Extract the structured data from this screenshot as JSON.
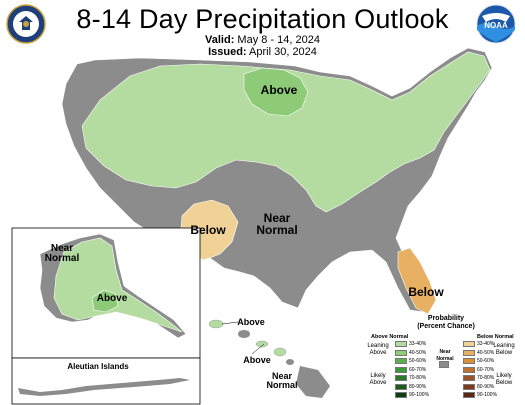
{
  "title": "8-14 Day Precipitation Outlook",
  "valid": {
    "label": "Valid:",
    "value": "May 8 - 14, 2024"
  },
  "issued": {
    "label": "Issued:",
    "value": "April 30, 2024"
  },
  "logos": {
    "left": "commerce-seal-icon",
    "right": "noaa-logo-icon"
  },
  "colors": {
    "land_near_normal": "#8c8c8c",
    "above_33_40": "#b4dca0",
    "above_40_50": "#8ecb78",
    "below_33_40": "#f0d296",
    "below_40_50": "#e8b062",
    "borders": "#ffffff",
    "water": "#ffffff"
  },
  "map_labels": {
    "conus_above": "Above",
    "conus_below_sw": "Below",
    "conus_near_normal": "Near\nNormal",
    "florida_below": "Below",
    "alaska_near_normal": "Near\nNormal",
    "alaska_above": "Above",
    "aleutian": "Aleutian Islands",
    "hawaii_above_1": "Above",
    "hawaii_above_2": "Above",
    "hawaii_near_normal": "Near\nNormal"
  },
  "legend": {
    "title": "Probability\n(Percent Chance)",
    "above_header": "Above Normal",
    "below_header": "Below Normal",
    "near_label": "Near\nNormal",
    "leaning_above": "Leaning\nAbove",
    "likely_above": "Likely\nAbove",
    "leaning_below": "Leaning\nBelow",
    "likely_below": "Likely\nBelow",
    "above_ranges": [
      "33-40%",
      "40-50%",
      "50-60%",
      "60-70%",
      "70-80%",
      "80-90%",
      "90-100%"
    ],
    "below_ranges": [
      "33-40%",
      "40-50%",
      "50-60%",
      "60-70%",
      "70-80%",
      "80-90%",
      "90-100%"
    ],
    "above_colors": [
      "#b4dca0",
      "#8ecb78",
      "#5cb04c",
      "#3c9a38",
      "#2a7a2a",
      "#1c5c1c",
      "#0e3e10"
    ],
    "below_colors": [
      "#f0d296",
      "#e8b062",
      "#d8903c",
      "#c07030",
      "#9c5228",
      "#7c3c20",
      "#5a2814"
    ],
    "near_color": "#8c8c8c"
  }
}
